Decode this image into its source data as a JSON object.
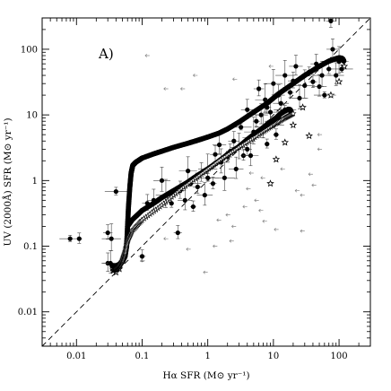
{
  "chart_data": {
    "type": "scatter",
    "panel_label": "A)",
    "xlabel": "Hα SFR (M⊙ yr⁻¹)",
    "ylabel": "UV (2000Å) SFR (M⊙ yr⁻¹)",
    "xscale": "log",
    "yscale": "log",
    "xlim": [
      0.003,
      300
    ],
    "ylim": [
      0.003,
      300
    ],
    "x_ticks": [
      {
        "value": 0.01,
        "label": "0.01"
      },
      {
        "value": 0.1,
        "label": "0.1"
      },
      {
        "value": 1,
        "label": "1"
      },
      {
        "value": 10,
        "label": "10"
      },
      {
        "value": 100,
        "label": "100"
      }
    ],
    "y_ticks": [
      {
        "value": 0.01,
        "label": "0.01"
      },
      {
        "value": 0.1,
        "label": "0.1"
      },
      {
        "value": 1,
        "label": "1"
      },
      {
        "value": 10,
        "label": "10"
      },
      {
        "value": 100,
        "label": "100"
      }
    ],
    "one_to_one_line": true,
    "grid": false,
    "series": [
      {
        "marker": "filled-circle-with-errorbars",
        "points": [
          [
            0.008,
            0.13
          ],
          [
            0.011,
            0.13
          ],
          [
            0.03,
            0.16
          ],
          [
            0.03,
            0.055
          ],
          [
            0.033,
            0.055
          ],
          [
            0.034,
            0.13
          ],
          [
            0.04,
            0.68
          ],
          [
            0.1,
            0.07
          ],
          [
            0.12,
            0.45
          ],
          [
            0.15,
            0.5
          ],
          [
            0.2,
            1.0
          ],
          [
            0.23,
            0.6
          ],
          [
            0.28,
            0.45
          ],
          [
            0.35,
            0.16
          ],
          [
            0.38,
            0.7
          ],
          [
            0.45,
            0.5
          ],
          [
            0.5,
            1.4
          ],
          [
            0.55,
            0.9
          ],
          [
            0.6,
            0.4
          ],
          [
            0.7,
            0.8
          ],
          [
            0.8,
            1.3
          ],
          [
            0.9,
            0.6
          ],
          [
            1.0,
            1.5
          ],
          [
            1.0,
            1.1
          ],
          [
            1.2,
            0.9
          ],
          [
            1.3,
            2.5
          ],
          [
            1.5,
            3.5
          ],
          [
            1.6,
            1.9
          ],
          [
            1.8,
            1.1
          ],
          [
            2.0,
            2.3
          ],
          [
            2.2,
            2.8
          ],
          [
            2.5,
            4.0
          ],
          [
            2.7,
            1.5
          ],
          [
            3.0,
            3.2
          ],
          [
            3.2,
            6.5
          ],
          [
            3.5,
            2.4
          ],
          [
            4.0,
            3.0
          ],
          [
            4.0,
            12.0
          ],
          [
            4.5,
            2.4
          ],
          [
            5.0,
            5.5
          ],
          [
            5.0,
            4.5
          ],
          [
            5.5,
            8.0
          ],
          [
            6.0,
            25.0
          ],
          [
            6.5,
            10.0
          ],
          [
            7.0,
            6.5
          ],
          [
            7.5,
            17.0
          ],
          [
            8.0,
            3.6
          ],
          [
            8.0,
            13.0
          ],
          [
            9.0,
            8.0
          ],
          [
            9.0,
            11.0
          ],
          [
            10.0,
            30.0
          ],
          [
            10.0,
            7.0
          ],
          [
            11.0,
            5.0
          ],
          [
            12.0,
            9.0
          ],
          [
            12.0,
            20.0
          ],
          [
            13.0,
            15.0
          ],
          [
            15.0,
            40.0
          ],
          [
            15.0,
            12.0
          ],
          [
            18.0,
            22.0
          ],
          [
            20.0,
            33.0
          ],
          [
            22.0,
            55.0
          ],
          [
            25.0,
            18.0
          ],
          [
            30.0,
            28.0
          ],
          [
            35.0,
            45.0
          ],
          [
            40.0,
            32.0
          ],
          [
            45.0,
            60.0
          ],
          [
            50.0,
            27.0
          ],
          [
            55.0,
            40.0
          ],
          [
            60.0,
            20.0
          ],
          [
            70.0,
            50.0
          ],
          [
            75.0,
            270.0
          ],
          [
            80.0,
            100.0
          ],
          [
            90.0,
            40.0
          ],
          [
            100.0,
            65.0
          ],
          [
            110.0,
            50.0
          ]
        ]
      },
      {
        "marker": "star",
        "points": [
          [
            0.035,
            0.05
          ],
          [
            0.04,
            0.04
          ],
          [
            0.045,
            0.045
          ],
          [
            9.0,
            0.9
          ],
          [
            11.0,
            2.1
          ],
          [
            15.0,
            3.8
          ],
          [
            20.0,
            7.0
          ],
          [
            28.0,
            13.0
          ],
          [
            35.0,
            4.8
          ],
          [
            75.0,
            20.0
          ],
          [
            100.0,
            32.0
          ],
          [
            120.0,
            55.0
          ]
        ]
      },
      {
        "marker": "left-arrow-upper-limit",
        "points": [
          [
            0.11,
            0.06
          ],
          [
            0.25,
            0.13
          ],
          [
            0.55,
            0.09
          ],
          [
            1.0,
            0.04
          ],
          [
            1.4,
            0.1
          ],
          [
            1.6,
            0.25
          ],
          [
            2.2,
            0.3
          ],
          [
            2.5,
            0.12
          ],
          [
            2.7,
            0.2
          ],
          [
            4.0,
            0.4
          ],
          [
            4.5,
            0.75
          ],
          [
            5.0,
            1.3
          ],
          [
            6.0,
            0.5
          ],
          [
            7.0,
            0.35
          ],
          [
            7.5,
            1.1
          ],
          [
            8.0,
            0.24
          ],
          [
            12.0,
            0.18
          ],
          [
            15.0,
            1.5
          ],
          [
            25.0,
            0.7
          ],
          [
            30.0,
            0.6
          ],
          [
            30.0,
            0.17
          ],
          [
            40.0,
            1.25
          ],
          [
            45.0,
            0.85
          ],
          [
            55.0,
            3.0
          ],
          [
            55.0,
            5.0
          ],
          [
            90.0,
            20.0
          ],
          [
            100.0,
            30.0
          ],
          [
            0.13,
            80.0
          ],
          [
            0.25,
            25.0
          ],
          [
            0.45,
            25.0
          ],
          [
            0.7,
            40.0
          ],
          [
            2.8,
            35.0
          ],
          [
            10.0,
            55.0
          ]
        ]
      },
      {
        "marker": "model-track-filled",
        "points": [
          [
            0.035,
            0.05
          ],
          [
            0.04,
            0.05
          ],
          [
            0.045,
            0.053
          ],
          [
            0.05,
            0.058
          ],
          [
            0.055,
            0.07
          ],
          [
            0.058,
            0.1
          ],
          [
            0.06,
            0.2
          ],
          [
            0.062,
            0.4
          ],
          [
            0.065,
            0.8
          ],
          [
            0.068,
            1.3
          ],
          [
            0.072,
            1.7
          ],
          [
            0.08,
            1.9
          ],
          [
            0.09,
            2.05
          ],
          [
            0.1,
            2.2
          ],
          [
            0.15,
            2.55
          ],
          [
            0.2,
            2.8
          ],
          [
            0.3,
            3.2
          ],
          [
            0.5,
            3.7
          ],
          [
            0.7,
            4.1
          ],
          [
            1.0,
            4.6
          ],
          [
            1.5,
            5.3
          ],
          [
            2.0,
            6.1
          ],
          [
            3.0,
            7.8
          ],
          [
            5.0,
            11.0
          ],
          [
            8.0,
            15.0
          ],
          [
            12.0,
            21.0
          ],
          [
            20.0,
            30.0
          ],
          [
            30.0,
            40.0
          ],
          [
            50.0,
            55.0
          ],
          [
            70.0,
            66.0
          ],
          [
            90.0,
            72.0
          ],
          [
            100.0,
            74.0
          ],
          [
            110.0,
            73.0
          ],
          [
            115.0,
            70.0
          ],
          [
            118.0,
            66.0
          ]
        ]
      },
      {
        "marker": "model-track-filled",
        "points": [
          [
            0.06,
            0.2
          ],
          [
            0.07,
            0.25
          ],
          [
            0.1,
            0.35
          ],
          [
            0.15,
            0.45
          ],
          [
            0.2,
            0.55
          ],
          [
            0.3,
            0.7
          ],
          [
            0.5,
            0.95
          ],
          [
            0.7,
            1.2
          ],
          [
            1.0,
            1.5
          ],
          [
            1.5,
            2.0
          ],
          [
            2.0,
            2.5
          ],
          [
            3.0,
            3.3
          ],
          [
            4.0,
            4.2
          ],
          [
            5.0,
            5.0
          ],
          [
            7.0,
            6.4
          ],
          [
            9.0,
            7.8
          ],
          [
            11.0,
            9.0
          ],
          [
            13.0,
            10.5
          ],
          [
            15.0,
            11.5
          ],
          [
            17.0,
            12.2
          ],
          [
            18.0,
            12.0
          ],
          [
            18.5,
            11.3
          ],
          [
            19.0,
            10.5
          ]
        ]
      },
      {
        "marker": "model-track-star",
        "points": [
          [
            0.036,
            0.042
          ],
          [
            0.04,
            0.045
          ],
          [
            0.045,
            0.05
          ],
          [
            0.05,
            0.06
          ],
          [
            0.055,
            0.08
          ],
          [
            0.06,
            0.12
          ],
          [
            0.07,
            0.17
          ],
          [
            0.1,
            0.25
          ],
          [
            0.2,
            0.42
          ],
          [
            0.4,
            0.75
          ],
          [
            0.8,
            1.25
          ],
          [
            1.5,
            2.0
          ],
          [
            3.0,
            3.2
          ],
          [
            6.0,
            5.0
          ],
          [
            10.0,
            7.0
          ],
          [
            15.0,
            9.0
          ],
          [
            20.0,
            10.5
          ]
        ]
      }
    ]
  }
}
